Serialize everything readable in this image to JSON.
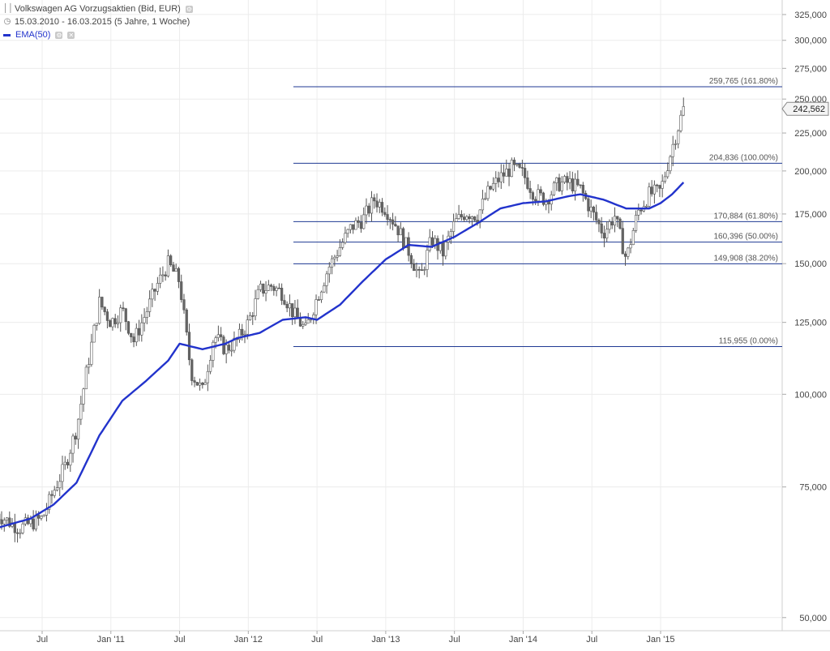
{
  "instrument": {
    "name": "Volkswagen AG Vorzugsaktien (Bid, EUR)",
    "range": "15.03.2010 - 16.03.2015 (5 Jahre, 1 Woche)",
    "indicator": "EMA(50)"
  },
  "last_price": "242,562",
  "colors": {
    "ema": "#2233cc",
    "fib": "#1f3a93",
    "candle": "#555555",
    "grid": "#ececec"
  },
  "chart_data": {
    "type": "candlestick",
    "y_scale": "log",
    "ylim": [
      48000,
      340000
    ],
    "y_ticks": [
      {
        "value": 50000,
        "label": "50,000"
      },
      {
        "value": 75000,
        "label": "75,000"
      },
      {
        "value": 100000,
        "label": "100,000"
      },
      {
        "value": 125000,
        "label": "125,000"
      },
      {
        "value": 150000,
        "label": "150,000"
      },
      {
        "value": 175000,
        "label": "175,000"
      },
      {
        "value": 200000,
        "label": "200,000"
      },
      {
        "value": 225000,
        "label": "225,000"
      },
      {
        "value": 250000,
        "label": "250,000"
      },
      {
        "value": 275000,
        "label": "275,000"
      },
      {
        "value": 300000,
        "label": "300,000"
      },
      {
        "value": 325000,
        "label": "325,000"
      }
    ],
    "x_ticks": [
      {
        "date": "2010-07",
        "label": "Jul"
      },
      {
        "date": "2011-01",
        "label": "Jan '11"
      },
      {
        "date": "2011-07",
        "label": "Jul"
      },
      {
        "date": "2012-01",
        "label": "Jan '12"
      },
      {
        "date": "2012-07",
        "label": "Jul"
      },
      {
        "date": "2013-01",
        "label": "Jan '13"
      },
      {
        "date": "2013-07",
        "label": "Jul"
      },
      {
        "date": "2014-01",
        "label": "Jan '14"
      },
      {
        "date": "2014-07",
        "label": "Jul"
      },
      {
        "date": "2015-01",
        "label": "Jan '15"
      }
    ],
    "fib_levels": [
      {
        "value": 259765,
        "label": "259,765 (161.80%)"
      },
      {
        "value": 204836,
        "label": "204,836 (100.00%)"
      },
      {
        "value": 170884,
        "label": "170,884 (61.80%)"
      },
      {
        "value": 160396,
        "label": "160,396 (50.00%)"
      },
      {
        "value": 149908,
        "label": "149,908 (38.20%)"
      },
      {
        "value": 115955,
        "label": "115,955 (0.00%)"
      }
    ],
    "price_path": [
      [
        "2010-03",
        69000
      ],
      [
        "2010-05",
        66000
      ],
      [
        "2010-07",
        68000
      ],
      [
        "2010-08",
        74000
      ],
      [
        "2010-09",
        80000
      ],
      [
        "2010-10",
        90000
      ],
      [
        "2010-11",
        110000
      ],
      [
        "2010-12",
        133000
      ],
      [
        "2011-01",
        125000
      ],
      [
        "2011-02",
        130000
      ],
      [
        "2011-03",
        118000
      ],
      [
        "2011-04",
        128000
      ],
      [
        "2011-05",
        140000
      ],
      [
        "2011-06",
        150000
      ],
      [
        "2011-07",
        142000
      ],
      [
        "2011-08",
        107000
      ],
      [
        "2011-09",
        101000
      ],
      [
        "2011-10",
        120000
      ],
      [
        "2011-11",
        115000
      ],
      [
        "2011-12",
        118000
      ],
      [
        "2012-01",
        125000
      ],
      [
        "2012-02",
        138000
      ],
      [
        "2012-03",
        140000
      ],
      [
        "2012-04",
        137000
      ],
      [
        "2012-05",
        128000
      ],
      [
        "2012-06",
        122000
      ],
      [
        "2012-07",
        135000
      ],
      [
        "2012-08",
        148000
      ],
      [
        "2012-09",
        158000
      ],
      [
        "2012-10",
        168000
      ],
      [
        "2012-11",
        172000
      ],
      [
        "2012-12",
        183000
      ],
      [
        "2013-01",
        178000
      ],
      [
        "2013-02",
        168000
      ],
      [
        "2013-03",
        156000
      ],
      [
        "2013-04",
        143000
      ],
      [
        "2013-05",
        162000
      ],
      [
        "2013-06",
        155000
      ],
      [
        "2013-07",
        170000
      ],
      [
        "2013-08",
        176000
      ],
      [
        "2013-09",
        174000
      ],
      [
        "2013-10",
        188000
      ],
      [
        "2013-11",
        196000
      ],
      [
        "2013-12",
        202000
      ],
      [
        "2014-01",
        198000
      ],
      [
        "2014-02",
        186000
      ],
      [
        "2014-03",
        183000
      ],
      [
        "2014-04",
        192000
      ],
      [
        "2014-05",
        193000
      ],
      [
        "2014-06",
        189000
      ],
      [
        "2014-07",
        176000
      ],
      [
        "2014-08",
        165000
      ],
      [
        "2014-09",
        174000
      ],
      [
        "2014-10",
        152000
      ],
      [
        "2014-11",
        176000
      ],
      [
        "2014-12",
        186000
      ],
      [
        "2015-01",
        188000
      ],
      [
        "2015-02",
        215000
      ],
      [
        "2015-03",
        242562
      ]
    ],
    "ema_path": [
      [
        "2010-03",
        66000
      ],
      [
        "2010-06",
        68000
      ],
      [
        "2010-08",
        71000
      ],
      [
        "2010-10",
        76000
      ],
      [
        "2010-12",
        88000
      ],
      [
        "2011-02",
        98000
      ],
      [
        "2011-04",
        104000
      ],
      [
        "2011-06",
        111000
      ],
      [
        "2011-07",
        117000
      ],
      [
        "2011-09",
        115000
      ],
      [
        "2011-11",
        117000
      ],
      [
        "2011-12",
        119000
      ],
      [
        "2012-02",
        121000
      ],
      [
        "2012-04",
        126000
      ],
      [
        "2012-06",
        127000
      ],
      [
        "2012-07",
        126000
      ],
      [
        "2012-09",
        132000
      ],
      [
        "2012-11",
        142000
      ],
      [
        "2013-01",
        152000
      ],
      [
        "2013-03",
        159000
      ],
      [
        "2013-05",
        158000
      ],
      [
        "2013-07",
        163000
      ],
      [
        "2013-09",
        170000
      ],
      [
        "2013-11",
        178000
      ],
      [
        "2014-01",
        181000
      ],
      [
        "2014-03",
        182000
      ],
      [
        "2014-05",
        185000
      ],
      [
        "2014-06",
        186000
      ],
      [
        "2014-08",
        183000
      ],
      [
        "2014-10",
        178000
      ],
      [
        "2014-12",
        178000
      ],
      [
        "2015-01",
        181000
      ],
      [
        "2015-02",
        186000
      ],
      [
        "2015-03",
        193000
      ]
    ]
  }
}
